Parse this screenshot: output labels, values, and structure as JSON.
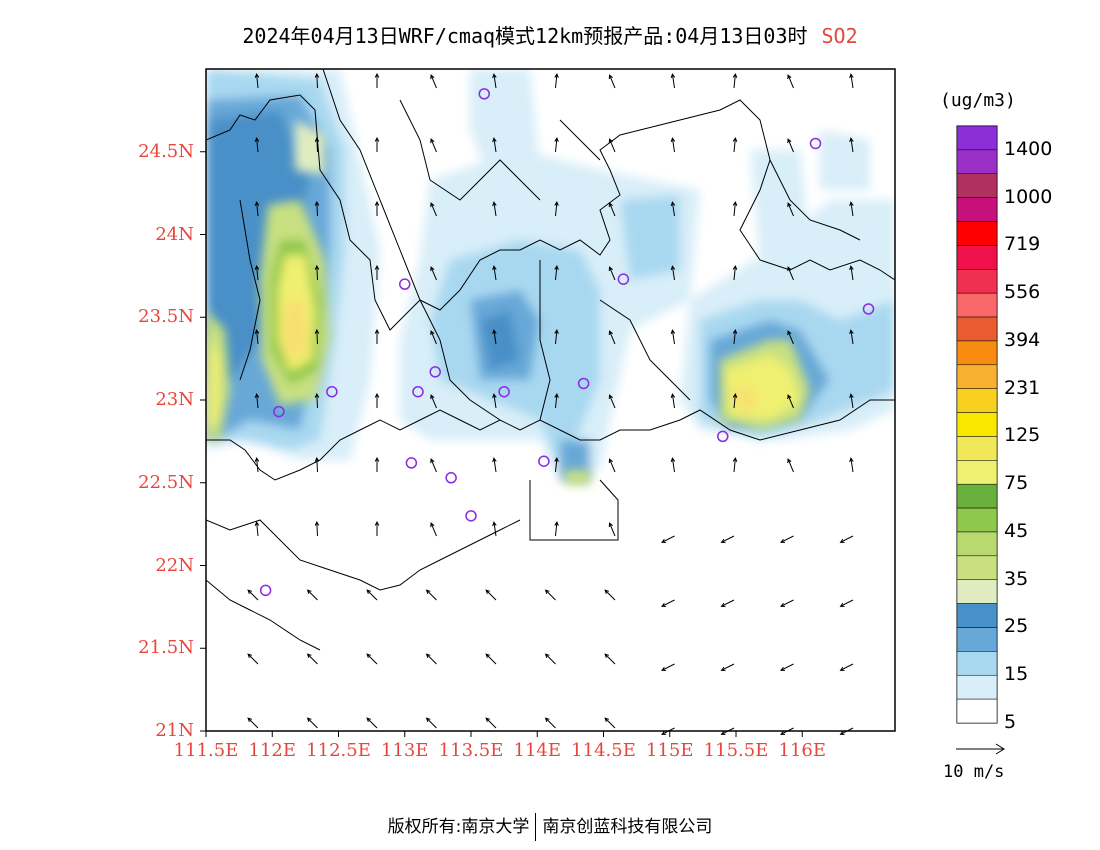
{
  "title": {
    "text": "2024年04月13日WRF/cmaq模式12km预报产品:04月13日03时",
    "species": "SO2"
  },
  "map": {
    "lat_ticks": [
      "24.5N",
      "24N",
      "23.5N",
      "23N",
      "22.5N",
      "22N",
      "21.5N",
      "21N"
    ],
    "lon_ticks": [
      "111.5E",
      "112E",
      "112.5E",
      "113E",
      "113.5E",
      "114E",
      "114.5E",
      "115E",
      "115.5E",
      "116E"
    ],
    "lat_range": [
      21,
      25
    ],
    "lon_range": [
      111.5,
      116.7
    ],
    "stations": [
      {
        "lon": 113.6,
        "lat": 24.85
      },
      {
        "lon": 116.1,
        "lat": 24.55
      },
      {
        "lon": 113.0,
        "lat": 23.7
      },
      {
        "lon": 114.65,
        "lat": 23.73
      },
      {
        "lon": 116.5,
        "lat": 23.55
      },
      {
        "lon": 113.23,
        "lat": 23.17
      },
      {
        "lon": 112.45,
        "lat": 23.05
      },
      {
        "lon": 113.1,
        "lat": 23.05
      },
      {
        "lon": 113.75,
        "lat": 23.05
      },
      {
        "lon": 114.35,
        "lat": 23.1
      },
      {
        "lon": 112.05,
        "lat": 22.93
      },
      {
        "lon": 115.4,
        "lat": 22.78
      },
      {
        "lon": 113.05,
        "lat": 22.62
      },
      {
        "lon": 113.35,
        "lat": 22.53
      },
      {
        "lon": 114.05,
        "lat": 22.63
      },
      {
        "lon": 113.5,
        "lat": 22.3
      },
      {
        "lon": 111.95,
        "lat": 21.85
      }
    ],
    "colors": {
      "station": "#8a2be2",
      "tick": "#e8463c",
      "land_boundary": "#000000"
    }
  },
  "colorbar": {
    "units": "(ug/m3)",
    "labels": [
      "1400",
      "1000",
      "719",
      "556",
      "394",
      "231",
      "125",
      "75",
      "45",
      "35",
      "25",
      "15",
      "5"
    ],
    "colors": [
      "#8b2fd9",
      "#9b30c8",
      "#b03060",
      "#c8107c",
      "#ff0000",
      "#f0104a",
      "#f03050",
      "#f86868",
      "#e85c30",
      "#f88c10",
      "#f8b030",
      "#f8d020",
      "#f8e800",
      "#f0e858",
      "#f0f070",
      "#6ab03c",
      "#8ec84c",
      "#b8d870",
      "#c8e080",
      "#e0ecc0",
      "#4890c8",
      "#68a8d8",
      "#a8d8f0",
      "#d8eef8",
      "#ffffff"
    ]
  },
  "vector_reference": {
    "label": "10 m/s"
  },
  "footer": {
    "left": "版权所有:南京大学",
    "right": "南京创蓝科技有限公司"
  }
}
